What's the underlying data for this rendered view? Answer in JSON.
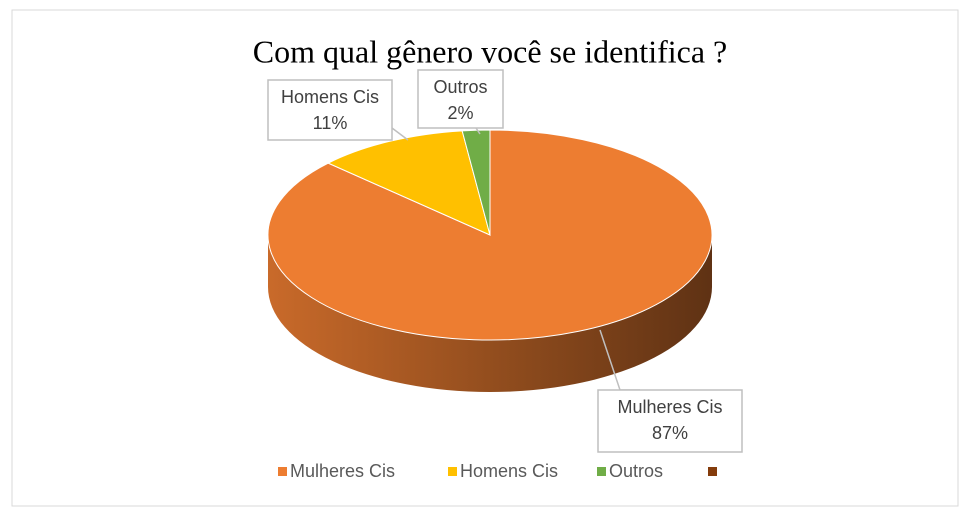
{
  "chart_data": {
    "type": "pie",
    "title": "Com qual gênero você se identifica ?",
    "categories": [
      "Mulheres Cis",
      "Homens Cis",
      "Outros",
      null
    ],
    "values": [
      87,
      11,
      2,
      null
    ],
    "value_labels": [
      "87%",
      "11%",
      "2%",
      null
    ],
    "colors": [
      "#ed7d31",
      "#ffc000",
      "#70ad47",
      "#843c0c"
    ],
    "legend": "bottom"
  }
}
